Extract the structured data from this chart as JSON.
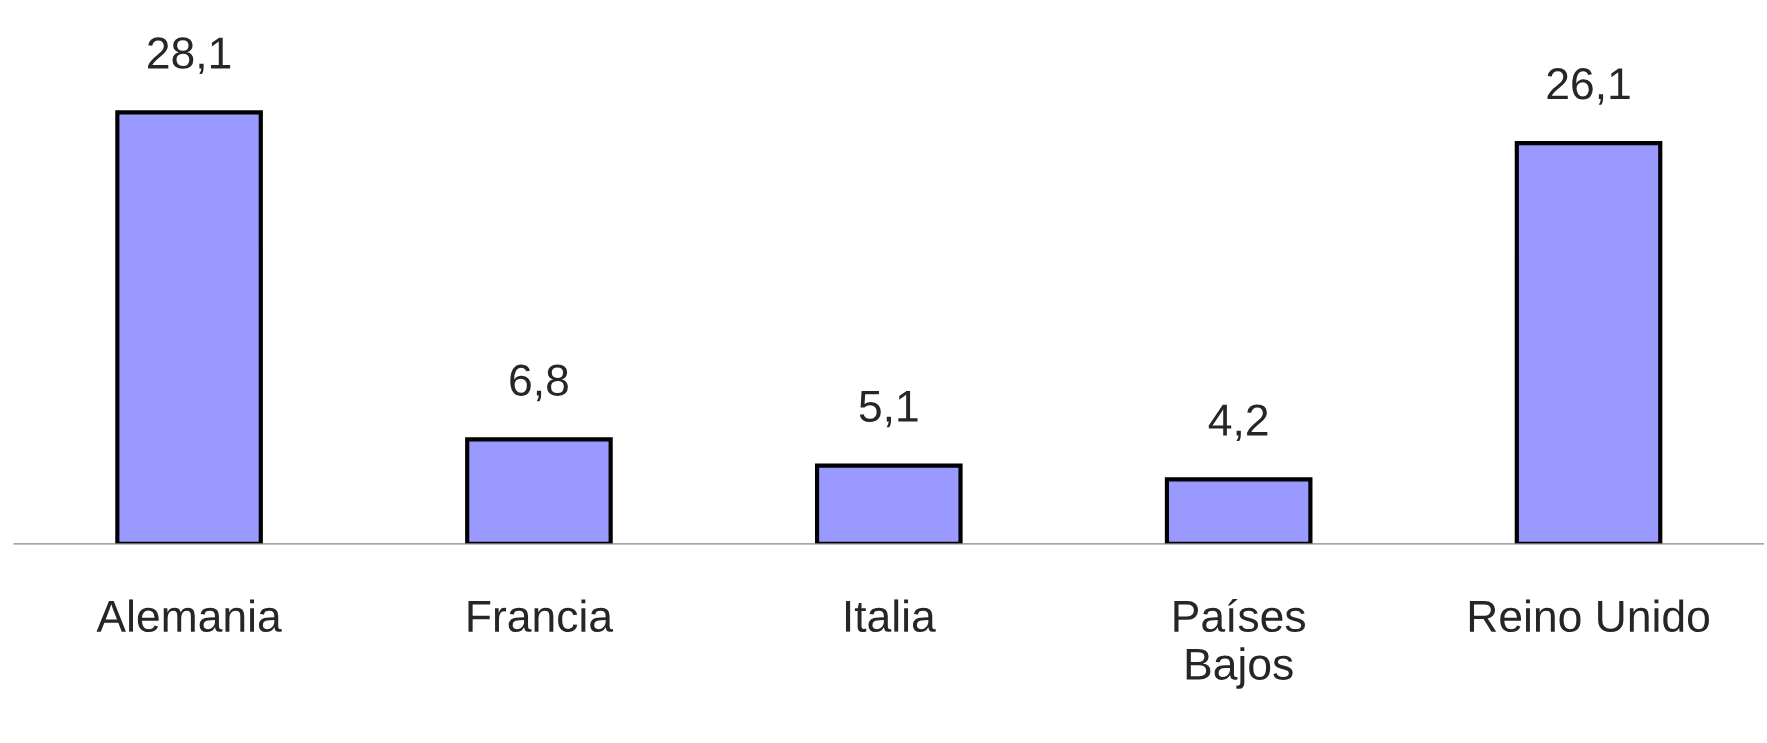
{
  "chart_data": {
    "type": "bar",
    "categories": [
      "Alemania",
      "Francia",
      "Italia",
      "Países\nBajos",
      "Reino Unido"
    ],
    "values": [
      28.1,
      6.8,
      5.1,
      4.2,
      26.1
    ],
    "value_labels": [
      "28,1",
      "6,8",
      "5,1",
      "4,2",
      "26,1"
    ],
    "color": "#9999ff",
    "tick_labels": "x",
    "grid": false,
    "legend": false
  }
}
